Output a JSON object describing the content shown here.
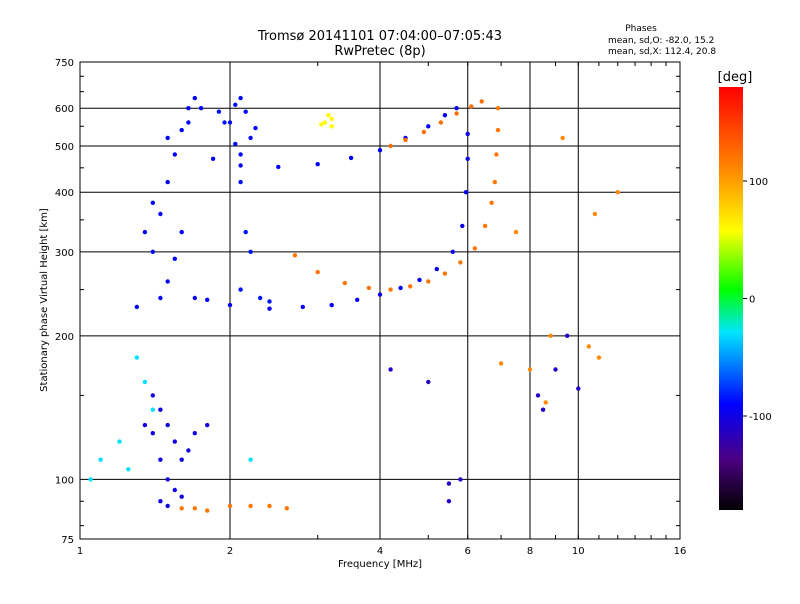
{
  "chart_data": {
    "type": "scatter",
    "title": "Tromsø 20141101 07:04:00–07:05:43",
    "subtitle": "RwPretec (8p)",
    "xlabel": "Frequency [MHz]",
    "ylabel": "Stationary phase Virtual Height [km]",
    "x_scale": "log",
    "y_scale": "log",
    "xlim": [
      1,
      16
    ],
    "ylim": [
      75,
      750
    ],
    "grid": true,
    "x_ticks": [
      1,
      2,
      4,
      6,
      8,
      10,
      16
    ],
    "y_ticks": [
      75,
      100,
      200,
      300,
      400,
      500,
      600,
      750
    ],
    "phase_box": {
      "heading": "Phases",
      "line1": "mean, sd,O: -82.0, 15.2",
      "line2": "mean, sd,X: 112.4, 20.8"
    },
    "colorbar": {
      "label": "[deg]",
      "range": [
        -180,
        180
      ],
      "ticks": [
        100,
        0,
        -100
      ]
    },
    "series": [
      {
        "phase": -90,
        "points": [
          [
            1.3,
            230
          ],
          [
            1.4,
            300
          ],
          [
            1.45,
            360
          ],
          [
            1.5,
            420
          ],
          [
            1.55,
            480
          ],
          [
            1.6,
            540
          ],
          [
            1.65,
            600
          ],
          [
            1.7,
            630
          ],
          [
            1.75,
            600
          ],
          [
            1.5,
            260
          ],
          [
            1.45,
            240
          ],
          [
            1.55,
            290
          ],
          [
            1.6,
            330
          ],
          [
            1.4,
            380
          ],
          [
            1.35,
            330
          ],
          [
            1.5,
            520
          ],
          [
            1.65,
            560
          ]
        ]
      },
      {
        "phase": -95,
        "points": [
          [
            1.7,
            240
          ],
          [
            1.8,
            238
          ],
          [
            2.0,
            232
          ],
          [
            2.4,
            228
          ],
          [
            2.8,
            230
          ],
          [
            3.2,
            232
          ],
          [
            3.6,
            238
          ],
          [
            4.0,
            244
          ],
          [
            4.4,
            252
          ],
          [
            4.8,
            262
          ],
          [
            5.2,
            276
          ],
          [
            5.6,
            300
          ],
          [
            5.85,
            340
          ],
          [
            5.95,
            400
          ],
          [
            6.0,
            470
          ],
          [
            6.0,
            530
          ]
        ]
      },
      {
        "phase": -92,
        "points": [
          [
            1.85,
            470
          ],
          [
            2.1,
            455
          ],
          [
            2.5,
            452
          ],
          [
            3.0,
            458
          ],
          [
            3.5,
            472
          ],
          [
            4.0,
            490
          ],
          [
            4.5,
            520
          ],
          [
            5.0,
            550
          ],
          [
            5.4,
            580
          ],
          [
            5.7,
            600
          ]
        ]
      },
      {
        "phase": -88,
        "points": [
          [
            2.0,
            560
          ],
          [
            2.05,
            610
          ],
          [
            2.1,
            630
          ],
          [
            2.15,
            590
          ],
          [
            2.2,
            520
          ],
          [
            2.1,
            480
          ],
          [
            2.05,
            505
          ],
          [
            2.25,
            545
          ]
        ]
      },
      {
        "phase": -85,
        "points": [
          [
            1.9,
            590
          ],
          [
            1.95,
            560
          ],
          [
            2.1,
            420
          ],
          [
            2.15,
            330
          ],
          [
            2.2,
            300
          ],
          [
            2.1,
            250
          ],
          [
            2.3,
            240
          ],
          [
            2.4,
            236
          ]
        ]
      },
      {
        "phase": 120,
        "points": [
          [
            2.7,
            295
          ],
          [
            3.0,
            272
          ],
          [
            3.4,
            258
          ],
          [
            3.8,
            252
          ],
          [
            4.2,
            250
          ],
          [
            4.6,
            254
          ],
          [
            5.0,
            260
          ],
          [
            5.4,
            270
          ],
          [
            5.8,
            285
          ],
          [
            6.2,
            305
          ],
          [
            6.5,
            340
          ],
          [
            6.7,
            380
          ],
          [
            6.8,
            420
          ],
          [
            6.85,
            480
          ],
          [
            6.9,
            540
          ],
          [
            6.9,
            600
          ]
        ]
      },
      {
        "phase": 125,
        "points": [
          [
            4.2,
            500
          ],
          [
            4.5,
            515
          ],
          [
            4.9,
            535
          ],
          [
            5.3,
            560
          ],
          [
            5.7,
            585
          ],
          [
            6.1,
            605
          ],
          [
            6.4,
            620
          ]
        ]
      },
      {
        "phase": 120,
        "points": [
          [
            1.6,
            87
          ],
          [
            1.7,
            87
          ],
          [
            1.8,
            86
          ],
          [
            2.0,
            88
          ],
          [
            2.2,
            88
          ],
          [
            2.4,
            88
          ],
          [
            2.6,
            87
          ]
        ]
      },
      {
        "phase": -100,
        "points": [
          [
            1.4,
            150
          ],
          [
            1.45,
            140
          ],
          [
            1.5,
            130
          ],
          [
            1.55,
            120
          ],
          [
            1.6,
            110
          ],
          [
            1.65,
            115
          ],
          [
            1.7,
            125
          ],
          [
            1.8,
            130
          ],
          [
            1.45,
            110
          ],
          [
            1.5,
            100
          ],
          [
            1.55,
            95
          ],
          [
            1.6,
            92
          ],
          [
            1.4,
            125
          ],
          [
            1.35,
            130
          ],
          [
            1.5,
            88
          ],
          [
            1.45,
            90
          ]
        ]
      },
      {
        "phase": -30,
        "points": [
          [
            1.3,
            180
          ],
          [
            1.35,
            160
          ],
          [
            1.4,
            140
          ],
          [
            1.2,
            120
          ],
          [
            1.1,
            110
          ],
          [
            1.05,
            100
          ],
          [
            1.25,
            105
          ],
          [
            2.2,
            110
          ]
        ]
      },
      {
        "phase": 60,
        "points": [
          [
            3.1,
            560
          ],
          [
            3.15,
            580
          ],
          [
            3.2,
            570
          ],
          [
            3.05,
            555
          ],
          [
            3.2,
            550
          ]
        ]
      },
      {
        "phase": -110,
        "points": [
          [
            5.5,
            98
          ],
          [
            5.5,
            90
          ],
          [
            5.8,
            100
          ],
          [
            8.3,
            150
          ],
          [
            8.5,
            140
          ],
          [
            9.0,
            170
          ],
          [
            9.5,
            200
          ],
          [
            4.2,
            170
          ],
          [
            5.0,
            160
          ],
          [
            10.0,
            155
          ]
        ]
      },
      {
        "phase": 110,
        "points": [
          [
            7.0,
            175
          ],
          [
            8.0,
            170
          ],
          [
            8.6,
            145
          ],
          [
            10.5,
            190
          ],
          [
            11.0,
            180
          ],
          [
            12.0,
            400
          ],
          [
            8.8,
            200
          ],
          [
            7.5,
            330
          ],
          [
            10.8,
            360
          ],
          [
            9.3,
            520
          ]
        ]
      }
    ]
  }
}
